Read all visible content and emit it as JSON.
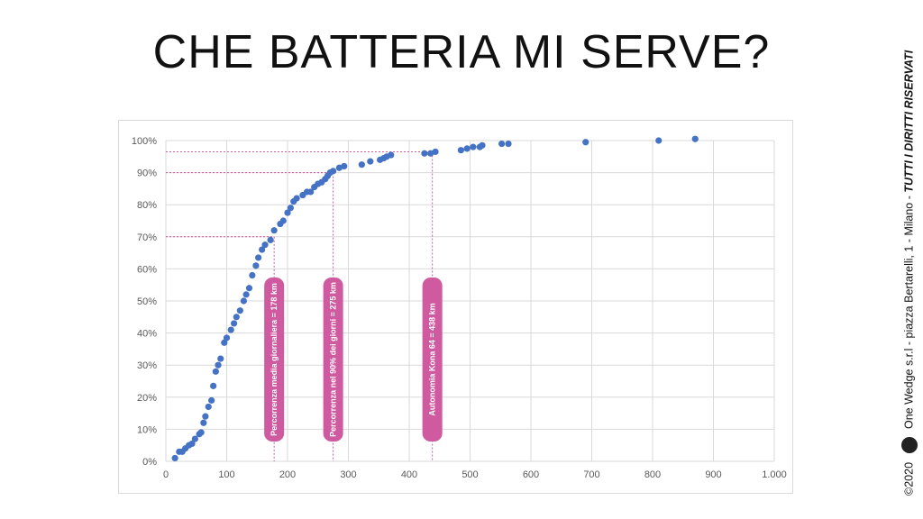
{
  "slide": {
    "title": "CHE BATTERIA MI SERVE?",
    "side_text": {
      "year": "©2020",
      "company": "One Wedge s.r.l - piazza Bertarelli, 1 - Milano -",
      "rights": "TUTTI I DIRITTI RISERVATI",
      "logo_icon": "one-wedge-logo-icon"
    }
  },
  "chart_data": {
    "type": "scatter",
    "xlim": [
      0,
      1000
    ],
    "ylim": [
      0,
      100
    ],
    "x_ticks": [
      0,
      100,
      200,
      300,
      400,
      500,
      600,
      700,
      800,
      900,
      1000
    ],
    "x_tick_labels": [
      "0",
      "100",
      "200",
      "300",
      "400",
      "500",
      "600",
      "700",
      "800",
      "900",
      "1.000"
    ],
    "y_ticks": [
      0,
      10,
      20,
      30,
      40,
      50,
      60,
      70,
      80,
      90,
      100
    ],
    "y_tick_labels": [
      "0%",
      "10%",
      "20%",
      "30%",
      "40%",
      "50%",
      "60%",
      "70%",
      "80%",
      "90%",
      "100%"
    ],
    "grid": true,
    "point_color": "#4472c4",
    "marker_color": "#d05aa0",
    "points": [
      [
        15,
        1
      ],
      [
        22,
        3
      ],
      [
        27,
        3
      ],
      [
        32,
        4
      ],
      [
        38,
        5
      ],
      [
        43,
        5.5
      ],
      [
        48,
        7
      ],
      [
        55,
        8.5
      ],
      [
        58,
        9
      ],
      [
        62,
        12
      ],
      [
        65,
        14
      ],
      [
        70,
        17
      ],
      [
        75,
        19
      ],
      [
        78,
        23.5
      ],
      [
        82,
        28
      ],
      [
        86,
        30
      ],
      [
        90,
        32
      ],
      [
        96,
        37
      ],
      [
        100,
        38.5
      ],
      [
        107,
        41
      ],
      [
        112,
        43
      ],
      [
        116,
        45
      ],
      [
        122,
        47
      ],
      [
        128,
        50
      ],
      [
        132,
        52
      ],
      [
        137,
        54
      ],
      [
        142,
        58
      ],
      [
        148,
        61
      ],
      [
        152,
        63.5
      ],
      [
        158,
        66
      ],
      [
        163,
        67.5
      ],
      [
        172,
        69
      ],
      [
        178,
        72
      ],
      [
        188,
        74
      ],
      [
        193,
        75
      ],
      [
        200,
        77.5
      ],
      [
        205,
        79
      ],
      [
        210,
        81
      ],
      [
        215,
        82
      ],
      [
        225,
        83
      ],
      [
        232,
        84
      ],
      [
        238,
        84
      ],
      [
        244,
        85.5
      ],
      [
        250,
        86.5
      ],
      [
        256,
        87
      ],
      [
        262,
        88
      ],
      [
        266,
        89
      ],
      [
        270,
        90
      ],
      [
        275,
        90.5
      ],
      [
        285,
        91.5
      ],
      [
        293,
        92
      ],
      [
        322,
        92.5
      ],
      [
        336,
        93.5
      ],
      [
        352,
        94
      ],
      [
        358,
        94.5
      ],
      [
        363,
        95
      ],
      [
        370,
        95.5
      ],
      [
        425,
        96
      ],
      [
        435,
        96
      ],
      [
        443,
        96.5
      ],
      [
        485,
        97
      ],
      [
        495,
        97.5
      ],
      [
        505,
        98
      ],
      [
        516,
        98
      ],
      [
        520,
        98.5
      ],
      [
        552,
        99
      ],
      [
        563,
        99
      ],
      [
        690,
        99.5
      ],
      [
        810,
        100
      ],
      [
        870,
        100.5
      ]
    ],
    "reference_lines": [
      {
        "x": 178,
        "y": 70,
        "label": "Percorrenza media giornaliera = 178 km"
      },
      {
        "x": 275,
        "y": 90,
        "label": "Percorrenza nel 90% dei giorni = 275 km"
      },
      {
        "x": 438,
        "y": 96.5,
        "label": "Autonomia Kona 64 = 438 km"
      }
    ]
  }
}
